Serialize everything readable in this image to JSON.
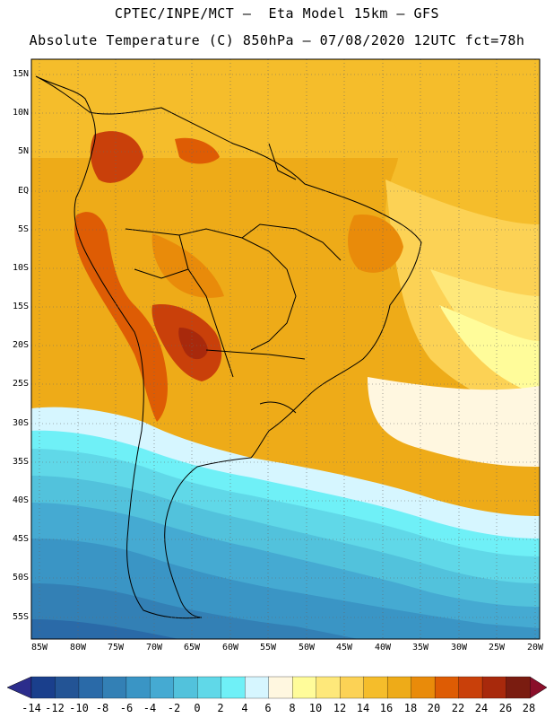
{
  "header": {
    "line1": "CPTEC/INPE/MCT –  Eta Model 15km – GFS",
    "line2": "Absolute Temperature (C) 850hPa – 07/08/2020 12UTC fct=78h"
  },
  "map": {
    "lat_labels": [
      "15N",
      "10N",
      "5N",
      "EQ",
      "5S",
      "10S",
      "15S",
      "20S",
      "25S",
      "30S",
      "35S",
      "40S",
      "45S",
      "50S",
      "55S"
    ],
    "lon_labels": [
      "85W",
      "80W",
      "75W",
      "70W",
      "65W",
      "60W",
      "55W",
      "50W",
      "45W",
      "40W",
      "35W",
      "30W",
      "25W",
      "20W"
    ]
  },
  "colorbar": {
    "labels": [
      "-14",
      "-12",
      "-10",
      "-8",
      "-6",
      "-4",
      "-2",
      "0",
      "2",
      "4",
      "6",
      "8",
      "10",
      "12",
      "14",
      "16",
      "18",
      "20",
      "22",
      "24",
      "26",
      "28"
    ],
    "colors": [
      "#1a3f8c",
      "#235495",
      "#2a6aa8",
      "#3380b5",
      "#3a95c5",
      "#45aad2",
      "#52c2dc",
      "#60d8e8",
      "#6ff0f7",
      "#d6f6ff",
      "#fff7e0",
      "#fffc9a",
      "#fee87a",
      "#fcd255",
      "#f5bd2b",
      "#eeab18",
      "#e98b0a",
      "#de5c04",
      "#c9400a",
      "#a8290c",
      "#7a1c10"
    ],
    "under_color": "#2c2d8c",
    "over_color": "#8a0f2a"
  }
}
